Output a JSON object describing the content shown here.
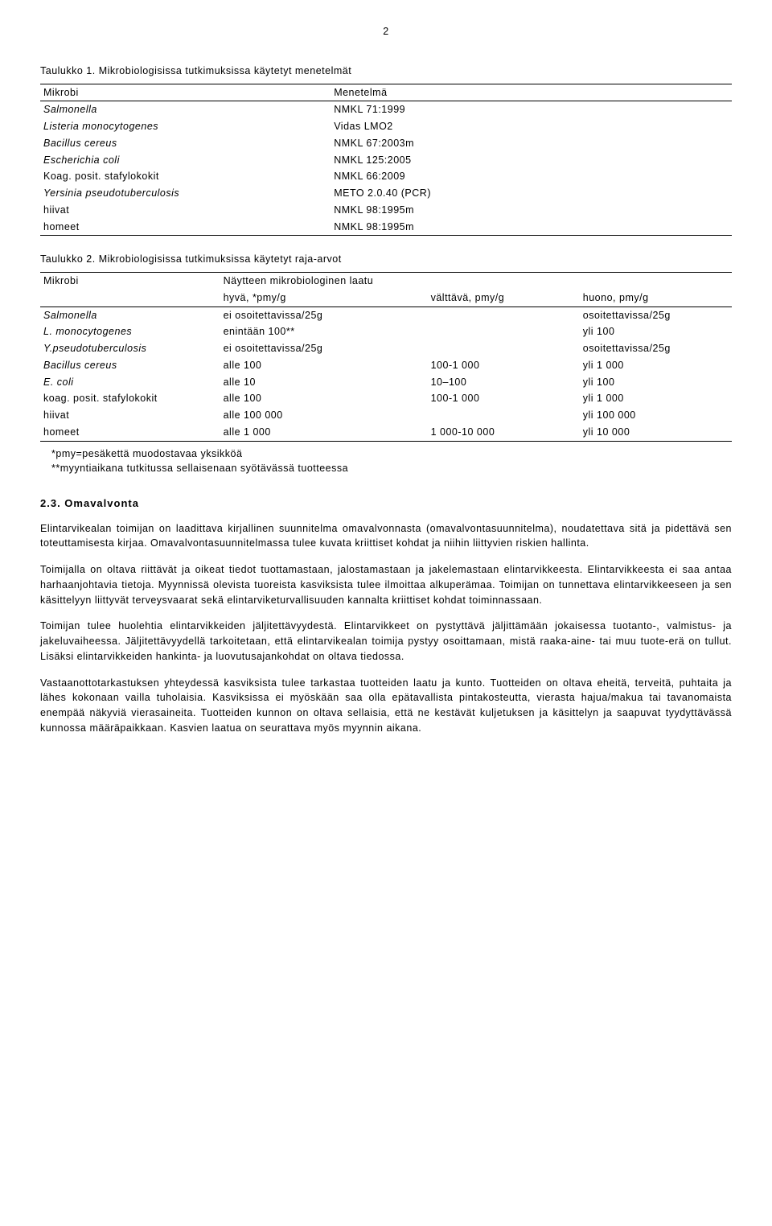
{
  "page_number": "2",
  "table1": {
    "caption": "Taulukko 1. Mikrobiologisissa tutkimuksissa käytetyt menetelmät",
    "header": [
      "Mikrobi",
      "Menetelmä"
    ],
    "rows": [
      [
        "Salmonella",
        "NMKL 71:1999",
        true
      ],
      [
        "Listeria monocytogenes",
        "Vidas LMO2",
        true
      ],
      [
        "Bacillus cereus",
        "NMKL 67:2003m",
        true
      ],
      [
        "Escherichia coli",
        "NMKL 125:2005",
        true
      ],
      [
        "Koag. posit. stafylokokit",
        "NMKL 66:2009",
        false
      ],
      [
        "Yersinia pseudotuberculosis",
        "METO 2.0.40 (PCR)",
        true
      ],
      [
        "hiivat",
        "NMKL 98:1995m",
        false
      ],
      [
        "homeet",
        "NMKL 98:1995m",
        false
      ]
    ]
  },
  "table2": {
    "caption": "Taulukko 2. Mikrobiologisissa tutkimuksissa käytetyt raja-arvot",
    "header_row1": [
      "Mikrobi",
      "Näytteen mikrobiologinen laatu"
    ],
    "header_row2": [
      "",
      "hyvä, *pmy/g",
      "välttävä, pmy/g",
      "huono, pmy/g"
    ],
    "rows": [
      {
        "n": "Salmonella",
        "it": true,
        "c1": "ei osoitettavissa/25g",
        "c2": "",
        "c3": "osoitettavissa/25g"
      },
      {
        "n": "L. monocytogenes",
        "it": true,
        "c1": "enintään 100**",
        "c2": "",
        "c3": "yli 100"
      },
      {
        "n": "Y.pseudotuberculosis",
        "it": true,
        "c1": "ei osoitettavissa/25g",
        "c2": "",
        "c3": "osoitettavissa/25g"
      },
      {
        "n": "Bacillus cereus",
        "it": true,
        "c1": "alle 100",
        "c2": "100-1 000",
        "c3": "yli 1 000"
      },
      {
        "n": "E. coli",
        "it": true,
        "c1": "alle 10",
        "c2": "10–100",
        "c3": "yli 100"
      },
      {
        "n": "koag. posit. stafylokokit",
        "it": false,
        "c1": "alle 100",
        "c2": "100-1 000",
        "c3": "yli 1 000"
      },
      {
        "n": "hiivat",
        "it": false,
        "c1": "alle 100 000",
        "c2": "",
        "c3": "yli 100 000"
      },
      {
        "n": "homeet",
        "it": false,
        "c1": "alle 1 000",
        "c2": "1 000-10 000",
        "c3": "yli 10 000"
      }
    ],
    "notes": [
      "*pmy=pesäkettä muodostavaa yksikköä",
      "**myyntiaikana tutkitussa sellaisenaan syötävässä tuotteessa"
    ]
  },
  "section": {
    "heading": "2.3.  Omavalvonta",
    "paras": [
      "Elintarvikealan toimijan on laadittava kirjallinen suunnitelma omavalvonnasta (omavalvontasuunnitelma), noudatettava sitä ja pidettävä sen toteuttamisesta kirjaa. Omavalvontasuunnitelmassa tulee kuvata kriittiset kohdat ja niihin liittyvien riskien hallinta.",
      "Toimijalla on oltava riittävät ja oikeat tiedot tuottamastaan, jalostamastaan ja jakelemastaan elintarvikkeesta. Elintarvikkeesta ei saa antaa harhaanjohtavia tietoja. Myynnissä olevista tuoreista kasviksista tulee ilmoittaa alkuperämaa. Toimijan on tunnettava elintarvikkeeseen ja sen käsittelyyn liittyvät terveysvaarat sekä elintarviketurvallisuuden kannalta kriittiset kohdat toiminnassaan.",
      "Toimijan tulee huolehtia elintarvikkeiden jäljitettävyydestä. Elintarvikkeet on pystyttävä jäljittämään jokaisessa tuotanto-, valmistus- ja jakeluvaiheessa. Jäljitettävyydellä tarkoitetaan, että elintarvikealan toimija pystyy osoittamaan, mistä raaka-aine- tai muu tuote-erä on tullut. Lisäksi elintarvikkeiden hankinta- ja luovutusajankohdat on oltava tiedossa.",
      "Vastaanottotarkastuksen yhteydessä kasviksista tulee tarkastaa tuotteiden laatu ja kunto. Tuotteiden on oltava eheitä, terveitä, puhtaita ja lähes kokonaan vailla tuholaisia. Kasviksissa ei myöskään saa olla epätavallista pintakosteutta, vierasta hajua/makua tai tavanomaista enempää näkyviä vierasaineita. Tuotteiden kunnon on oltava sellaisia, että ne kestävät kuljetuksen ja käsittelyn ja saapuvat tyydyttävässä kunnossa määräpaikkaan. Kasvien laatua on seurattava myös myynnin aikana."
    ]
  }
}
